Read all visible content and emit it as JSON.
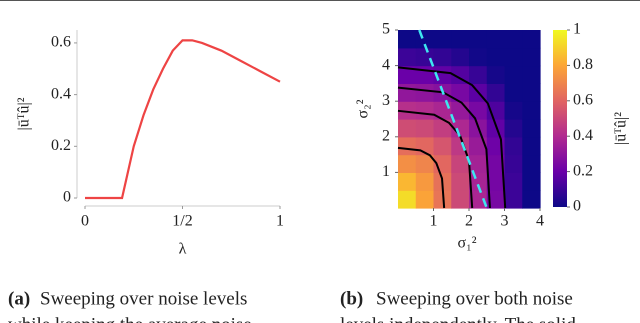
{
  "chart_data": [
    {
      "type": "line",
      "ylabel": "|ūᵀû|²",
      "xlabel": "λ",
      "xlim": [
        0,
        1
      ],
      "ylim": [
        0,
        0.65
      ],
      "xticks": [
        0,
        {
          "value": 0.5,
          "label": "1/2"
        },
        1
      ],
      "yticks": [
        0,
        0.2,
        0.4,
        0.6
      ],
      "series": [
        {
          "color": "#ee4444",
          "x": [
            0,
            0.1,
            0.19,
            0.22,
            0.25,
            0.3,
            0.35,
            0.4,
            0.45,
            0.5,
            0.55,
            0.6,
            0.7,
            0.8,
            0.9,
            1
          ],
          "values": [
            0,
            0,
            0,
            0.1,
            0.2,
            0.32,
            0.42,
            0.5,
            0.57,
            0.61,
            0.61,
            0.6,
            0.57,
            0.53,
            0.49,
            0.45
          ]
        }
      ]
    },
    {
      "type": "heatmap",
      "xlabel": "σ₁²",
      "ylabel": "σ₂²",
      "colorbar_label": "|ūᵀû|²",
      "xlim": [
        0,
        4
      ],
      "ylim": [
        0,
        5
      ],
      "xticks": [
        1,
        2,
        3,
        4
      ],
      "yticks": [
        1,
        2,
        3,
        4,
        5
      ],
      "clim": [
        0,
        1
      ],
      "cticks": [
        0,
        0.2,
        0.4,
        0.6,
        0.8,
        1
      ],
      "colormap": [
        "#0d0887",
        "#6a00a8",
        "#b12a90",
        "#e16462",
        "#fca636",
        "#f0f921"
      ],
      "x": [
        0.25,
        0.75,
        1.25,
        1.75,
        2.25,
        2.75,
        3.25,
        3.75
      ],
      "y": [
        0.25,
        0.75,
        1.25,
        1.75,
        2.25,
        2.75,
        3.25,
        3.75,
        4.25,
        4.75
      ],
      "z": [
        [
          0.93,
          0.79,
          0.65,
          0.51,
          0.38,
          0.24,
          0.1,
          0
        ],
        [
          0.84,
          0.76,
          0.64,
          0.51,
          0.37,
          0.23,
          0.1,
          0
        ],
        [
          0.73,
          0.7,
          0.61,
          0.49,
          0.36,
          0.23,
          0.09,
          0
        ],
        [
          0.63,
          0.61,
          0.55,
          0.45,
          0.33,
          0.21,
          0.08,
          0
        ],
        [
          0.52,
          0.51,
          0.47,
          0.39,
          0.29,
          0.18,
          0.05,
          0
        ],
        [
          0.42,
          0.41,
          0.38,
          0.32,
          0.24,
          0.14,
          0.02,
          0
        ],
        [
          0.31,
          0.3,
          0.28,
          0.24,
          0.17,
          0.08,
          0,
          0
        ],
        [
          0.2,
          0.2,
          0.18,
          0.15,
          0.09,
          0.02,
          0,
          0
        ],
        [
          0.1,
          0.09,
          0.08,
          0.05,
          0.01,
          0,
          0,
          0
        ],
        [
          0,
          0,
          0,
          0,
          0,
          0,
          0,
          0
        ]
      ],
      "contours": [
        {
          "color": "#000000",
          "x": [
            1.3,
            1.24,
            1.08,
            0.9,
            0.63,
            0
          ],
          "y": [
            0,
            0.83,
            1.26,
            1.48,
            1.62,
            1.69
          ]
        },
        {
          "color": "#000000",
          "x": [
            2.09,
            2.0,
            1.75,
            1.44,
            1.02,
            0
          ],
          "y": [
            0,
            1.33,
            2.03,
            2.39,
            2.62,
            2.73
          ]
        },
        {
          "color": "#000000",
          "x": [
            2.59,
            2.49,
            2.17,
            1.79,
            1.27,
            0
          ],
          "y": [
            0,
            1.65,
            2.52,
            2.96,
            3.25,
            3.38
          ]
        },
        {
          "color": "#000000",
          "x": [
            3.02,
            2.9,
            2.53,
            2.09,
            1.48,
            0
          ],
          "y": [
            0,
            1.93,
            2.94,
            3.45,
            3.79,
            3.95
          ]
        }
      ],
      "lines": [
        {
          "color": "#3ee6f0",
          "dashed": true,
          "x": [
            0.6,
            2.5
          ],
          "y": [
            5,
            0
          ]
        }
      ]
    }
  ],
  "captions": [
    {
      "label": "(a)",
      "lines": [
        "Sweeping over noise levels",
        "while keeping the average noise"
      ]
    },
    {
      "label": "(b)",
      "lines": [
        "Sweeping over both noise",
        "levels independently. The solid"
      ]
    }
  ]
}
